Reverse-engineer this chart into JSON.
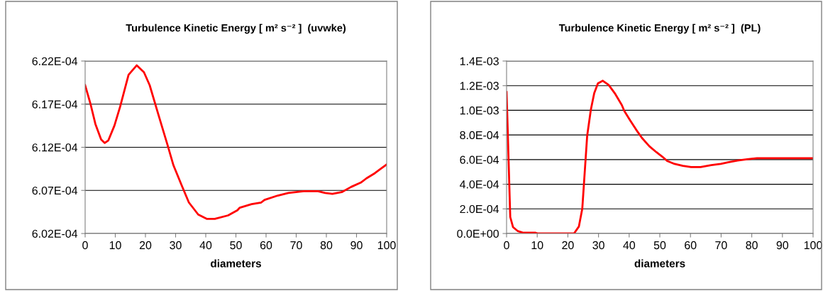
{
  "chart_data": [
    {
      "type": "line",
      "title": "Turbulence Kinetic Energy [ m² s⁻² ]  (uvwke)",
      "xlabel": "diameters",
      "x": [
        0,
        1.8,
        3.4,
        5.3,
        6.5,
        7.7,
        9.7,
        11.6,
        14.4,
        17.1,
        19.5,
        21.4,
        24.2,
        25.4,
        27.3,
        29.3,
        32.0,
        34.4,
        37.5,
        40.3,
        43.0,
        47.4,
        50.5,
        51.3,
        55.2,
        58.4,
        59.5,
        63.9,
        67.4,
        72.5,
        77.2,
        79.6,
        82.0,
        85.1,
        88.2,
        91.4,
        93.3,
        96.1,
        98.4,
        100
      ],
      "series": [
        {
          "color": "#ff0000",
          "values": [
            0.0006192,
            0.000617,
            0.0006147,
            0.0006129,
            0.0006125,
            0.0006128,
            0.0006145,
            0.0006167,
            0.0006204,
            0.0006215,
            0.0006207,
            0.0006192,
            0.0006159,
            0.0006145,
            0.0006123,
            0.0006099,
            0.0006076,
            0.0006056,
            0.0006042,
            0.0006037,
            0.0006037,
            0.0006041,
            0.0006047,
            0.000605,
            0.0006054,
            0.0006056,
            0.0006059,
            0.0006064,
            0.0006067,
            0.0006069,
            0.0006069,
            0.0006067,
            0.0006066,
            0.0006068,
            0.0006074,
            0.0006079,
            0.0006084,
            0.000609,
            0.0006096,
            0.00061
          ]
        }
      ],
      "xlim": [
        0,
        100
      ],
      "xticks": [
        0,
        10,
        20,
        30,
        40,
        50,
        60,
        70,
        80,
        90,
        100
      ],
      "ylim": [
        0.000602,
        0.000622
      ],
      "yticks": [
        {
          "value": 0.000602,
          "label": "6.02E-04"
        },
        {
          "value": 0.000607,
          "label": "6.07E-04"
        },
        {
          "value": 0.000612,
          "label": "6.12E-04"
        },
        {
          "value": 0.000617,
          "label": "6.17E-04"
        },
        {
          "value": 0.000622,
          "label": "6.22E-04"
        }
      ],
      "grid": "y",
      "legend": false,
      "marker": "none",
      "line_style": "solid"
    },
    {
      "type": "line",
      "title": "Turbulence Kinetic Energy [ m² s⁻² ]  (PL)",
      "xlabel": "diameters",
      "x": [
        0,
        1.2,
        2.1,
        3.7,
        5.2,
        9.5,
        10.3,
        22,
        23.6,
        24.7,
        26.3,
        27.5,
        28.6,
        29.8,
        31.4,
        33.3,
        35.3,
        37.6,
        38.4,
        40.3,
        42.3,
        44.2,
        46.6,
        48.9,
        50.9,
        52.4,
        54.8,
        57.5,
        60.2,
        63.3,
        66.8,
        69.9,
        72.3,
        75.4,
        78.5,
        81.7,
        100
      ],
      "series": [
        {
          "color": "#ff0000",
          "values": [
            0.001148,
            0.000134,
            5.2e-05,
            1.9e-05,
            8e-06,
            6e-06,
            0,
            0,
            5.7e-05,
            0.000201,
            0.000794,
            0.001005,
            0.001139,
            0.001219,
            0.00124,
            0.001206,
            0.001139,
            0.001043,
            0.000995,
            0.000919,
            0.000842,
            0.000775,
            0.000708,
            0.00066,
            0.000622,
            0.000589,
            0.000565,
            0.000549,
            0.00054,
            0.00054,
            0.000555,
            0.000565,
            0.000578,
            0.000593,
            0.000603,
            0.000612,
            0.000612
          ]
        }
      ],
      "xlim": [
        0,
        100
      ],
      "xticks": [
        0,
        10,
        20,
        30,
        40,
        50,
        60,
        70,
        80,
        90,
        100
      ],
      "ylim": [
        0,
        0.0014
      ],
      "yticks": [
        {
          "value": 0,
          "label": "0.0E+00"
        },
        {
          "value": 0.0002,
          "label": "2.0E-04"
        },
        {
          "value": 0.0004,
          "label": "4.0E-04"
        },
        {
          "value": 0.0006,
          "label": "6.0E-04"
        },
        {
          "value": 0.0008,
          "label": "8.0E-04"
        },
        {
          "value": 0.001,
          "label": "1.0E-03"
        },
        {
          "value": 0.0012,
          "label": "1.2E-03"
        },
        {
          "value": 0.0014,
          "label": "1.4E-03"
        }
      ],
      "grid": "y",
      "legend": false,
      "marker": "none",
      "line_style": "solid"
    }
  ]
}
